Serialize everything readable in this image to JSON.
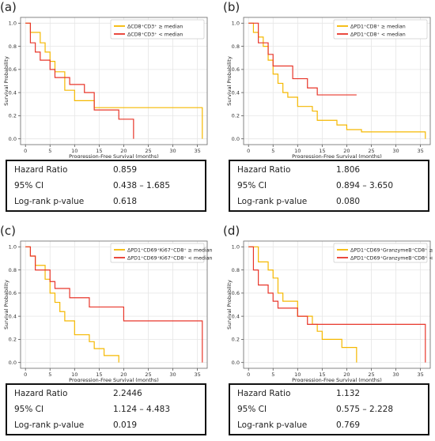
{
  "colors": {
    "above": "#F5B800",
    "below": "#E8362A",
    "merged": "#EE8A1C"
  },
  "chart_data": [
    {
      "type": "line",
      "panel_label": "(a)",
      "xlabel": "Progression-Free Survival (months)",
      "ylabel": "Survival Probability",
      "xlim": [
        -1,
        37
      ],
      "ylim": [
        -0.05,
        1.05
      ],
      "xticks": [
        0,
        5,
        10,
        15,
        20,
        25,
        30,
        35
      ],
      "yticks": [
        0.0,
        0.2,
        0.4,
        0.6,
        0.8,
        1.0
      ],
      "grid": true,
      "legend_position": "top-right",
      "series": [
        {
          "name": "ΔCD8⁺CD3⁺ ≥ median",
          "color_key": "above",
          "steps": [
            [
              0,
              1.0
            ],
            [
              1,
              0.92
            ],
            [
              3,
              0.83
            ],
            [
              4,
              0.75
            ],
            [
              5,
              0.67
            ],
            [
              6,
              0.58
            ],
            [
              8,
              0.42
            ],
            [
              10,
              0.33
            ],
            [
              13,
              0.33
            ],
            [
              14,
              0.27
            ],
            [
              36,
              0.0
            ]
          ]
        },
        {
          "name": "ΔCD8⁺CD3⁺ < median",
          "color_key": "below",
          "steps": [
            [
              0,
              1.0
            ],
            [
              1,
              0.83
            ],
            [
              2,
              0.75
            ],
            [
              3,
              0.68
            ],
            [
              5,
              0.6
            ],
            [
              6,
              0.53
            ],
            [
              9,
              0.47
            ],
            [
              12,
              0.4
            ],
            [
              14,
              0.25
            ],
            [
              19,
              0.17
            ],
            [
              22,
              0.0
            ]
          ]
        }
      ],
      "stats": {
        "hr_label": "Hazard Ratio",
        "hr": "0.859",
        "ci_label": "95% CI",
        "ci": "0.438 – 1.685",
        "p_label": "Log-rank p-value",
        "p": "0.618"
      }
    },
    {
      "type": "line",
      "panel_label": "(b)",
      "xlabel": "Progression-Free Survival (months)",
      "ylabel": "Survival Probability",
      "xlim": [
        -1,
        37
      ],
      "ylim": [
        -0.05,
        1.05
      ],
      "xticks": [
        0,
        5,
        10,
        15,
        20,
        25,
        30,
        35
      ],
      "yticks": [
        0.0,
        0.2,
        0.4,
        0.6,
        0.8,
        1.0
      ],
      "grid": true,
      "legend_position": "top-right",
      "series": [
        {
          "name": "ΔPD1⁺CD8⁺ ≥ median",
          "color_key": "above",
          "steps": [
            [
              0,
              1.0
            ],
            [
              1,
              0.92
            ],
            [
              2,
              0.88
            ],
            [
              3,
              0.8
            ],
            [
              4,
              0.68
            ],
            [
              5,
              0.56
            ],
            [
              6,
              0.48
            ],
            [
              7,
              0.4
            ],
            [
              8,
              0.36
            ],
            [
              10,
              0.28
            ],
            [
              13,
              0.24
            ],
            [
              14,
              0.16
            ],
            [
              18,
              0.12
            ],
            [
              20,
              0.08
            ],
            [
              23,
              0.06
            ],
            [
              36,
              0.0
            ]
          ]
        },
        {
          "name": "ΔPD1⁺CD8⁺ < median",
          "color_key": "below",
          "steps": [
            [
              0,
              1.0
            ],
            [
              2,
              0.83
            ],
            [
              4,
              0.73
            ],
            [
              5,
              0.63
            ],
            [
              9,
              0.52
            ],
            [
              12,
              0.44
            ],
            [
              14,
              0.38
            ],
            [
              22,
              0.38
            ]
          ]
        }
      ],
      "stats": {
        "hr_label": "Hazard Ratio",
        "hr": "1.806",
        "ci_label": "95% CI",
        "ci": "0.894 – 3.650",
        "p_label": "Log-rank p-value",
        "p": "0.080"
      }
    },
    {
      "type": "line",
      "panel_label": "(c)",
      "xlabel": "Progression-Free Survival (months)",
      "ylabel": "Survival Probability",
      "xlim": [
        -1,
        37
      ],
      "ylim": [
        -0.05,
        1.05
      ],
      "xticks": [
        0,
        5,
        10,
        15,
        20,
        25,
        30,
        35
      ],
      "yticks": [
        0.0,
        0.2,
        0.4,
        0.6,
        0.8,
        1.0
      ],
      "grid": true,
      "legend_position": "top-right",
      "series": [
        {
          "name": "ΔPD1⁺CD69⁺Ki67⁺CD8⁺ ≥ median",
          "color_key": "above",
          "steps": [
            [
              0,
              1.0
            ],
            [
              1,
              0.92
            ],
            [
              2,
              0.84
            ],
            [
              4,
              0.72
            ],
            [
              5,
              0.6
            ],
            [
              6,
              0.52
            ],
            [
              7,
              0.44
            ],
            [
              8,
              0.36
            ],
            [
              10,
              0.24
            ],
            [
              13,
              0.18
            ],
            [
              14,
              0.12
            ],
            [
              16,
              0.06
            ],
            [
              19,
              0.0
            ]
          ]
        },
        {
          "name": "ΔPD1⁺CD69⁺Ki67⁺CD8⁺ < median",
          "color_key": "below",
          "steps": [
            [
              0,
              1.0
            ],
            [
              1,
              0.92
            ],
            [
              2,
              0.8
            ],
            [
              5,
              0.7
            ],
            [
              6,
              0.64
            ],
            [
              9,
              0.56
            ],
            [
              13,
              0.48
            ],
            [
              20,
              0.36
            ],
            [
              36,
              0.0
            ]
          ]
        }
      ],
      "stats": {
        "hr_label": "Hazard Ratio",
        "hr": "2.2446",
        "ci_label": "95% CI",
        "ci": "1.124 – 4.483",
        "p_label": "Log-rank p-value",
        "p": "0.019"
      }
    },
    {
      "type": "line",
      "panel_label": "(d)",
      "xlabel": "Progression-Free Survival (months)",
      "ylabel": "Survival Probability",
      "xlim": [
        -1,
        37
      ],
      "ylim": [
        -0.05,
        1.05
      ],
      "xticks": [
        0,
        5,
        10,
        15,
        20,
        25,
        30,
        35
      ],
      "yticks": [
        0.0,
        0.2,
        0.4,
        0.6,
        0.8,
        1.0
      ],
      "grid": true,
      "legend_position": "top-right",
      "series": [
        {
          "name": "ΔPD1⁺CD69⁺GranzymeB⁺CD8⁺ ≥ median",
          "color_key": "above",
          "steps": [
            [
              0,
              1.0
            ],
            [
              2,
              0.87
            ],
            [
              4,
              0.8
            ],
            [
              5,
              0.73
            ],
            [
              6,
              0.6
            ],
            [
              7,
              0.53
            ],
            [
              10,
              0.4
            ],
            [
              13,
              0.33
            ],
            [
              14,
              0.27
            ],
            [
              15,
              0.2
            ],
            [
              19,
              0.13
            ],
            [
              22,
              0.0
            ]
          ]
        },
        {
          "name": "ΔPD1⁺CD69⁺GranzymeB⁺CD8⁺ < median",
          "color_key": "below",
          "steps": [
            [
              0,
              1.0
            ],
            [
              1,
              0.8
            ],
            [
              2,
              0.67
            ],
            [
              4,
              0.6
            ],
            [
              5,
              0.53
            ],
            [
              6,
              0.47
            ],
            [
              10,
              0.4
            ],
            [
              12,
              0.33
            ],
            [
              36,
              0.0
            ]
          ]
        }
      ],
      "stats": {
        "hr_label": "Hazard Ratio",
        "hr": "1.132",
        "ci_label": "95% CI",
        "ci": "0.575 – 2.228",
        "p_label": "Log-rank p-value",
        "p": "0.769"
      }
    }
  ]
}
